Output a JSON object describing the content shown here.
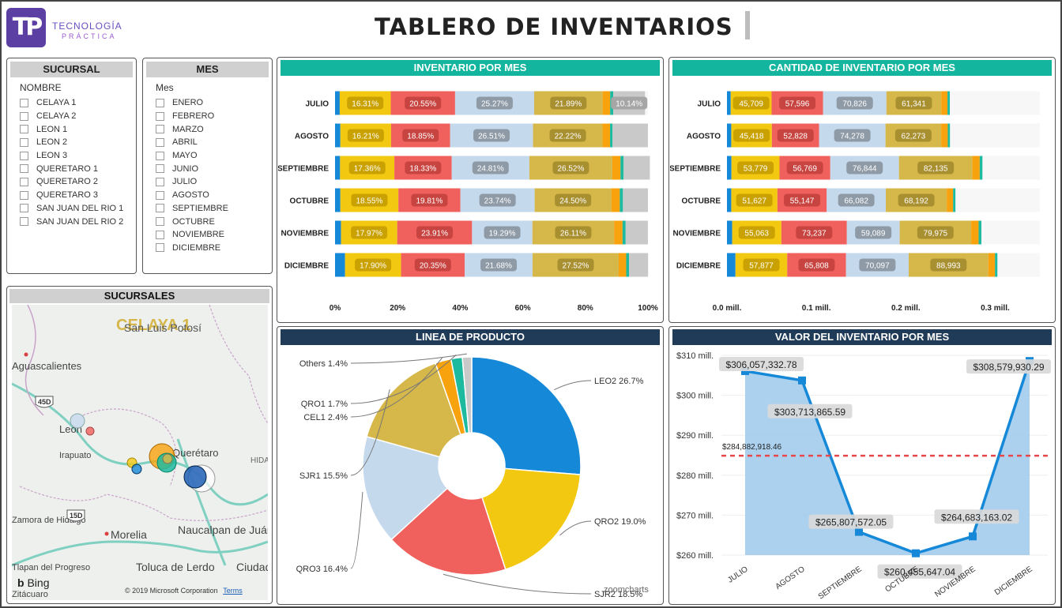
{
  "header": {
    "logo_mark": "TP",
    "logo_line1": "TECNOLOGÍA",
    "logo_line2": "PRÁCTICA",
    "title": "TABLERO DE INVENTARIOS"
  },
  "slicer_sucursal": {
    "title": "SUCURSAL",
    "subtitle": "NOMBRE",
    "items": [
      "CELAYA 1",
      "CELAYA 2",
      "LEON 1",
      "LEON 2",
      "LEON 3",
      "QUERETARO 1",
      "QUERETARO 2",
      "QUERETARO 3",
      "SAN JUAN DEL RIO 1",
      "SAN JUAN DEL RIO 2"
    ]
  },
  "slicer_mes": {
    "title": "MES",
    "subtitle": "Mes",
    "items": [
      "ENERO",
      "FEBRERO",
      "MARZO",
      "ABRIL",
      "MAYO",
      "JUNIO",
      "JULIO",
      "AGOSTO",
      "SEPTIEMBRE",
      "OCTUBRE",
      "NOVIEMBRE",
      "DICIEMBRE"
    ]
  },
  "map": {
    "title": "SUCURSALES",
    "tooltip": "CELAYA 1",
    "labels": [
      "San Luis Potosí",
      "Aguascalientes",
      "Leon",
      "Irapuato",
      "Querétaro",
      "Zamora de Hidalgo",
      "Morelia",
      "Naucalpan de Juárez",
      "Toluca de Lerdo",
      "Ciudad de México",
      "Tlapan del Progreso",
      "Zitácuaro",
      "HIDA"
    ],
    "shields": [
      "45D",
      "15D"
    ],
    "bing": "Bing",
    "copyright": "© 2019 Microsoft Corporation",
    "terms": "Terms"
  },
  "colors": {
    "blue": "#1688d8",
    "gold": "#f2c811",
    "red": "#f0605d",
    "lightblue": "#c5d9ed",
    "olive": "#d6b74a",
    "orange": "#f8a20d",
    "teal": "#1ebaa0",
    "gray": "#c9c9c9"
  },
  "chart_data": [
    {
      "type": "bar",
      "title": "INVENTARIO POR MES",
      "orientation": "horizontal-stacked-100",
      "categories": [
        "JULIO",
        "AGOSTO",
        "SEPTIEMBRE",
        "OCTUBRE",
        "NOVIEMBRE",
        "DICIEMBRE"
      ],
      "xticks": [
        "0%",
        "20%",
        "40%",
        "60%",
        "80%",
        "100%"
      ],
      "xlim": [
        0,
        100
      ],
      "series": [
        {
          "color": "blue",
          "values": [
            1.5,
            1.7,
            1.6,
            1.7,
            1.9,
            3.2
          ],
          "labels": [
            "",
            "",
            "",
            "",
            "",
            ""
          ]
        },
        {
          "color": "gold",
          "values": [
            16.31,
            16.21,
            17.36,
            18.55,
            17.97,
            17.9
          ],
          "labels": [
            "16.31%",
            "16.21%",
            "17.36%",
            "18.55%",
            "17.97%",
            "17.90%"
          ]
        },
        {
          "color": "red",
          "values": [
            20.55,
            18.85,
            18.33,
            19.81,
            23.91,
            20.35
          ],
          "labels": [
            "20.55%",
            "18.85%",
            "18.33%",
            "19.81%",
            "23.91%",
            "20.35%"
          ]
        },
        {
          "color": "lightblue",
          "values": [
            25.27,
            26.51,
            24.81,
            23.74,
            19.29,
            21.68
          ],
          "labels": [
            "25.27%",
            "26.51%",
            "24.81%",
            "23.74%",
            "19.29%",
            "21.68%"
          ]
        },
        {
          "color": "olive",
          "values": [
            21.89,
            22.22,
            26.52,
            24.5,
            26.11,
            27.52
          ],
          "labels": [
            "21.89%",
            "22.22%",
            "26.52%",
            "24.50%",
            "26.11%",
            "27.52%"
          ]
        },
        {
          "color": "orange",
          "values": [
            2.4,
            2.4,
            2.6,
            2.7,
            2.7,
            2.4
          ],
          "labels": [
            "",
            "",
            "",
            "",
            "",
            ""
          ]
        },
        {
          "color": "teal",
          "values": [
            1.0,
            0.8,
            1.0,
            1.0,
            1.0,
            0.9
          ],
          "labels": [
            "",
            "",
            "",
            "",
            "",
            ""
          ]
        },
        {
          "color": "gray",
          "values": [
            10.14,
            11.3,
            8.4,
            8.0,
            7.1,
            6.1
          ],
          "labels": [
            "10.14%",
            "",
            "",
            "",
            "",
            ""
          ]
        }
      ]
    },
    {
      "type": "bar",
      "title": "CANTIDAD DE INVENTARIO POR MES",
      "orientation": "horizontal-stacked",
      "categories": [
        "JULIO",
        "AGOSTO",
        "SEPTIEMBRE",
        "OCTUBRE",
        "NOVIEMBRE",
        "DICIEMBRE"
      ],
      "xticks": [
        "0.0 mill.",
        "0.1 mill.",
        "0.2 mill.",
        "0.3 mill."
      ],
      "xlim": [
        0,
        350000
      ],
      "series": [
        {
          "color": "blue",
          "values": [
            4200,
            4800,
            5000,
            4800,
            5800,
            9500
          ],
          "labels": [
            "",
            "",
            "",
            "",
            "",
            ""
          ]
        },
        {
          "color": "gold",
          "values": [
            45709,
            45418,
            53779,
            51627,
            55063,
            57877
          ],
          "labels": [
            "45,709",
            "45,418",
            "53,779",
            "51,627",
            "55,063",
            "57,877"
          ]
        },
        {
          "color": "red",
          "values": [
            57596,
            52828,
            56769,
            55147,
            73237,
            65808
          ],
          "labels": [
            "57,596",
            "52,828",
            "56,769",
            "55,147",
            "73,237",
            "65,808"
          ]
        },
        {
          "color": "lightblue",
          "values": [
            70826,
            74278,
            76844,
            66082,
            59089,
            70097
          ],
          "labels": [
            "70,826",
            "74,278",
            "76,844",
            "66,082",
            "59,089",
            "70,097"
          ]
        },
        {
          "color": "olive",
          "values": [
            61341,
            62273,
            82135,
            68192,
            79975,
            88993
          ],
          "labels": [
            "61,341",
            "62,273",
            "82,135",
            "68,192",
            "79,975",
            "88,993"
          ]
        },
        {
          "color": "orange",
          "values": [
            7000,
            7400,
            8200,
            7100,
            8300,
            7500
          ],
          "labels": [
            "",
            "",
            "",
            "",
            "",
            ""
          ]
        },
        {
          "color": "teal",
          "values": [
            2600,
            2400,
            3000,
            2600,
            3100,
            2700
          ],
          "labels": [
            "",
            "",
            "",
            "",
            "",
            ""
          ]
        }
      ]
    },
    {
      "type": "pie",
      "title": "LINEA DE PRODUCTO",
      "watermark": "zoomcharts",
      "slices": [
        {
          "label": "LEO2 26.7%",
          "value": 26.7,
          "color": "blue"
        },
        {
          "label": "QRO2 19.0%",
          "value": 19.0,
          "color": "gold"
        },
        {
          "label": "SJR2 18.5%",
          "value": 18.5,
          "color": "red"
        },
        {
          "label": "QRO3 16.4%",
          "value": 16.4,
          "color": "lightblue"
        },
        {
          "label": "SJR1 15.5%",
          "value": 15.5,
          "color": "olive"
        },
        {
          "label": "CEL1 2.4%",
          "value": 2.4,
          "color": "orange"
        },
        {
          "label": "QRO1 1.7%",
          "value": 1.7,
          "color": "teal"
        },
        {
          "label": "Others 1.4%",
          "value": 1.4,
          "color": "gray"
        }
      ]
    },
    {
      "type": "area",
      "title": "VALOR DEL INVENTARIO POR MES",
      "categories": [
        "JULIO",
        "AGOSTO",
        "SEPTIEMBRE",
        "OCTUBRE",
        "NOVIEMBRE",
        "DICIEMBRE"
      ],
      "values": [
        306057332.78,
        303713865.59,
        265807572.05,
        260455647.04,
        264683163.02,
        308579930.29
      ],
      "labels": [
        "$306,057,332.78",
        "$303,713,865.59",
        "$265,807,572.05",
        "$260,455,647.04",
        "$264,683,163.02",
        "$308,579,930.29"
      ],
      "average": 284882918.46,
      "average_label": "$284,882,918.46",
      "yticks": [
        "$260 mill.",
        "$270 mill.",
        "$280 mill.",
        "$290 mill.",
        "$300 mill.",
        "$310 mill."
      ],
      "ylim": [
        260000000,
        310000000
      ]
    }
  ]
}
